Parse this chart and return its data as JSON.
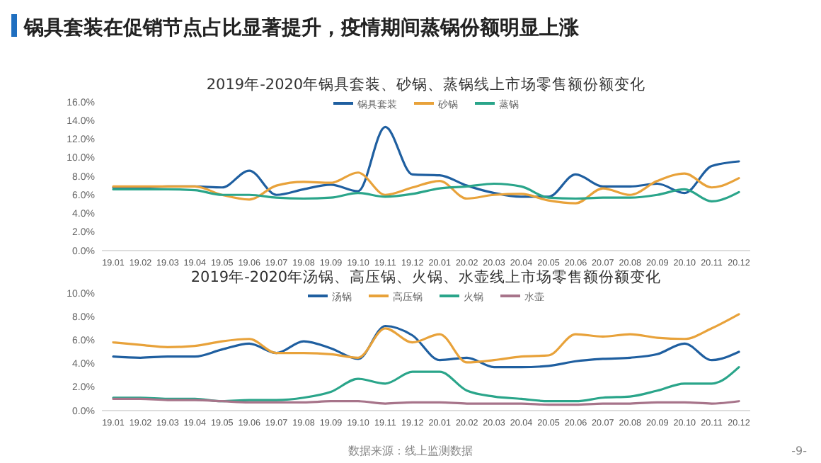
{
  "chart_data": [
    {
      "type": "line",
      "title": "2019年-2020年锅具套装、砂锅、蒸锅线上市场零售额份额变化",
      "annotations": [
        "锅具套装在促销节点占比显著提升，疫情期间蒸锅份额明显上涨"
      ],
      "categories": [
        "19.01",
        "19.02",
        "19.03",
        "19.04",
        "19.05",
        "19.06",
        "19.07",
        "19.08",
        "19.09",
        "19.10",
        "19.11",
        "19.12",
        "20.01",
        "20.02",
        "20.03",
        "20.04",
        "20.05",
        "20.06",
        "20.07",
        "20.08",
        "20.09",
        "20.10",
        "20.11",
        "20.12"
      ],
      "series": [
        {
          "name": "锅具套装",
          "color": "#1f5fa0",
          "values": [
            6.8,
            6.8,
            6.9,
            6.9,
            6.8,
            8.6,
            6.0,
            6.6,
            7.1,
            6.4,
            13.3,
            8.2,
            8.1,
            7.0,
            6.2,
            5.8,
            5.8,
            8.2,
            6.9,
            6.9,
            7.2,
            6.2,
            9.1,
            9.6
          ]
        },
        {
          "name": "砂锅",
          "color": "#e8a23a",
          "values": [
            6.9,
            6.9,
            6.9,
            6.9,
            6.0,
            5.5,
            7.0,
            7.4,
            7.3,
            8.4,
            6.0,
            6.8,
            7.5,
            5.6,
            6.0,
            6.1,
            5.4,
            5.1,
            6.7,
            6.0,
            7.5,
            8.3,
            6.8,
            7.8
          ]
        },
        {
          "name": "蒸锅",
          "color": "#2aa58a",
          "values": [
            6.6,
            6.6,
            6.6,
            6.5,
            6.0,
            6.0,
            5.7,
            5.6,
            5.7,
            6.2,
            5.8,
            6.1,
            6.7,
            6.9,
            7.2,
            6.9,
            5.7,
            5.6,
            5.7,
            5.7,
            6.0,
            6.6,
            5.3,
            6.3
          ]
        }
      ],
      "ylim": [
        0,
        16
      ],
      "yticks": [
        {
          "value": 0,
          "label": "0.0%"
        },
        {
          "value": 2,
          "label": "2.0%"
        },
        {
          "value": 4,
          "label": "4.0%"
        },
        {
          "value": 6,
          "label": "6.0%"
        },
        {
          "value": 8,
          "label": "8.0%"
        },
        {
          "value": 10,
          "label": "10.0%"
        },
        {
          "value": 12,
          "label": "12.0%"
        },
        {
          "value": 14,
          "label": "14.0%"
        },
        {
          "value": 16,
          "label": "16.0%"
        }
      ],
      "legend": "top",
      "marker": "none",
      "line_style": "solid"
    },
    {
      "type": "line",
      "title": "2019年-2020年汤锅、高压锅、火锅、水壶线上市场零售额份额变化",
      "annotations": [
        "数据来源：线上监测数据",
        "-9-"
      ],
      "categories": [
        "19.01",
        "19.02",
        "19.03",
        "19.04",
        "19.05",
        "19.06",
        "19.07",
        "19.08",
        "19.09",
        "19.10",
        "19.11",
        "19.12",
        "20.01",
        "20.02",
        "20.03",
        "20.04",
        "20.05",
        "20.06",
        "20.07",
        "20.08",
        "20.09",
        "20.10",
        "20.11",
        "20.12"
      ],
      "series": [
        {
          "name": "汤锅",
          "color": "#1f5fa0",
          "values": [
            4.6,
            4.5,
            4.6,
            4.6,
            5.2,
            5.7,
            4.9,
            5.9,
            5.3,
            4.4,
            7.2,
            6.4,
            4.3,
            4.5,
            3.7,
            3.7,
            3.8,
            4.2,
            4.4,
            4.5,
            4.8,
            5.7,
            4.3,
            5.0
          ]
        },
        {
          "name": "高压锅",
          "color": "#e8a23a",
          "values": [
            5.8,
            5.6,
            5.4,
            5.5,
            5.9,
            6.1,
            4.9,
            4.9,
            4.8,
            4.5,
            7.0,
            5.8,
            6.5,
            4.1,
            4.3,
            4.6,
            4.7,
            6.5,
            6.3,
            6.5,
            6.2,
            6.1,
            7.0,
            8.2
          ]
        },
        {
          "name": "火锅",
          "color": "#2aa58a",
          "values": [
            1.1,
            1.1,
            1.0,
            1.0,
            0.8,
            0.9,
            0.9,
            1.1,
            1.6,
            2.7,
            2.3,
            3.3,
            3.3,
            1.7,
            1.2,
            1.0,
            0.8,
            0.8,
            1.1,
            1.2,
            1.7,
            2.3,
            2.3,
            3.7
          ]
        },
        {
          "name": "水壶",
          "color": "#a7748a",
          "values": [
            1.0,
            1.0,
            0.9,
            0.9,
            0.8,
            0.7,
            0.7,
            0.7,
            0.8,
            0.8,
            0.6,
            0.7,
            0.7,
            0.6,
            0.6,
            0.6,
            0.5,
            0.5,
            0.6,
            0.6,
            0.7,
            0.7,
            0.6,
            0.8
          ]
        }
      ],
      "ylim": [
        0,
        10
      ],
      "yticks": [
        {
          "value": 0,
          "label": "0.0%"
        },
        {
          "value": 2,
          "label": "2.0%"
        },
        {
          "value": 4,
          "label": "4.0%"
        },
        {
          "value": 6,
          "label": "6.0%"
        },
        {
          "value": 8,
          "label": "8.0%"
        },
        {
          "value": 10,
          "label": "10.0%"
        }
      ],
      "legend": "top",
      "marker": "none",
      "line_style": "solid"
    }
  ]
}
